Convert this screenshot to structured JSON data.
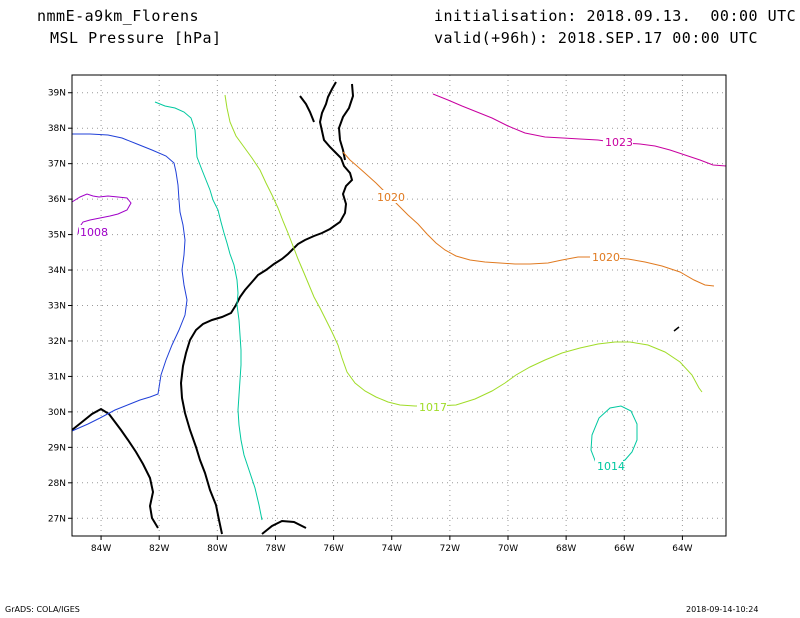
{
  "header": {
    "model": "nmmE-a9km_Florens",
    "field": "MSL Pressure [hPa]",
    "init": "initialisation: 2018.09.13.  00:00 UTC",
    "valid": "valid(+96h): 2018.SEP.17 00:00 UTC"
  },
  "map": {
    "lon_range": [
      -85,
      -62.5
    ],
    "lat_range": [
      26.5,
      39.5
    ],
    "grid": "dotted",
    "lon_labels": [
      "84W",
      "82W",
      "80W",
      "78W",
      "76W",
      "74W",
      "72W",
      "70W",
      "68W",
      "66W",
      "64W"
    ],
    "lat_labels": [
      "27N",
      "28N",
      "29N",
      "30N",
      "31N",
      "32N",
      "33N",
      "34N",
      "35N",
      "36N",
      "37N",
      "38N",
      "39N"
    ]
  },
  "contours": [
    {
      "level": "1008",
      "color": "#a000c8"
    },
    {
      "level": "1011",
      "color": "#2040d8"
    },
    {
      "level": "1014",
      "color": "#00c8a0"
    },
    {
      "level": "1017",
      "color": "#a0dc28"
    },
    {
      "level": "1020",
      "color": "#e07a20"
    },
    {
      "level": "1023",
      "color": "#c800a0"
    }
  ],
  "contour_labels": {
    "l1008": "1008",
    "l1014": "1014",
    "l1017": "1017",
    "l1020a": "1020",
    "l1020b": "1020",
    "l1023": "1023"
  },
  "footer": {
    "left": "GrADS: COLA/IGES",
    "right": "2018-09-14-10:24"
  }
}
